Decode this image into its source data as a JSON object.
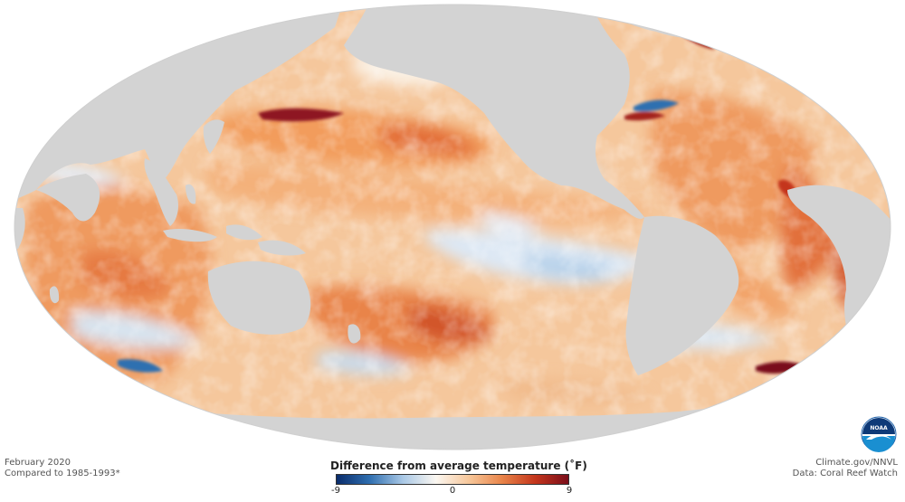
{
  "map": {
    "projection": "Mollweide (Pacific-centred)",
    "variable": "Sea surface temperature anomaly",
    "colors": {
      "land": "#d3d3d3",
      "cold_max": "#0a2c6b",
      "cold_mid": "#2f6fb0",
      "cold_light": "#a9c8e6",
      "neutral": "#fbf7f1",
      "warm_light": "#f7c79a",
      "warm_mid": "#e98449",
      "warm_strong": "#c4361c",
      "warm_max": "#7a0d1a"
    }
  },
  "legend": {
    "title": "Difference from average temperature (˚F)",
    "ticks": [
      "-9",
      "0",
      "9"
    ],
    "min": -9,
    "max": 9
  },
  "footer": {
    "date": "February 2020",
    "baseline": "Compared to 1985-1993*",
    "site": "Climate.gov/NNVL",
    "source": "Data: Coral Reef Watch"
  },
  "logo": {
    "text": "NOAA",
    "icon": "noaa-seagull-logo"
  }
}
